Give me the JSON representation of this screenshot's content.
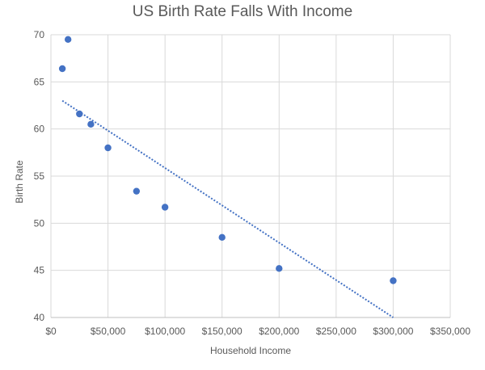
{
  "chart_data": {
    "type": "scatter",
    "title": "US Birth Rate Falls With Income",
    "xlabel": "Household Income",
    "ylabel": "Birth Rate",
    "xlim": [
      0,
      350000
    ],
    "ylim": [
      40,
      70
    ],
    "x_ticks": [
      0,
      50000,
      100000,
      150000,
      200000,
      250000,
      300000,
      350000
    ],
    "x_tick_labels": [
      "$0",
      "$50,000",
      "$100,000",
      "$150,000",
      "$200,000",
      "$250,000",
      "$300,000",
      "$350,000"
    ],
    "y_ticks": [
      40,
      45,
      50,
      55,
      60,
      65,
      70
    ],
    "y_tick_labels": [
      "40",
      "45",
      "50",
      "55",
      "60",
      "65",
      "70"
    ],
    "grid": true,
    "legend": "none",
    "series": [
      {
        "x": [
          10000,
          15000,
          25000,
          35000,
          50000,
          75000,
          100000,
          150000,
          200000,
          300000
        ],
        "y": [
          66.4,
          69.5,
          61.6,
          60.5,
          58.0,
          53.4,
          51.7,
          48.5,
          45.2,
          43.9
        ],
        "color": "#4472C4"
      }
    ],
    "trendline": {
      "type": "linear",
      "style": "dotted",
      "color": "#4472C4",
      "x": [
        10000,
        300000
      ],
      "y": [
        63.0,
        40.0
      ]
    }
  }
}
